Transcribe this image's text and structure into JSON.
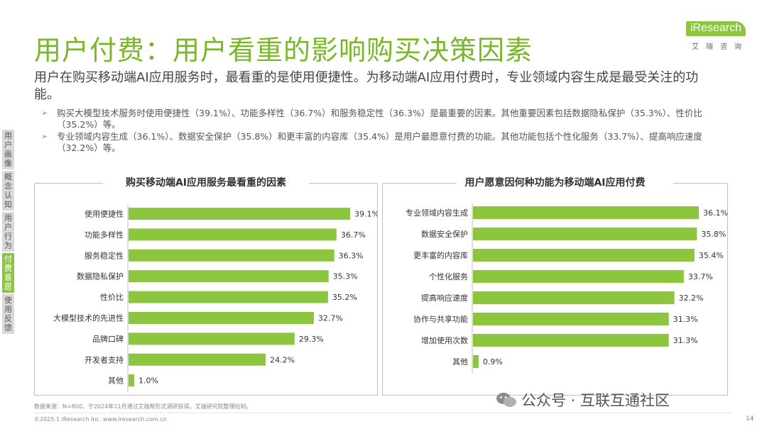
{
  "title": "用户付费：用户看重的影响购买决策因素",
  "logo": {
    "word": "iResearch",
    "sub": "艾瑞咨询"
  },
  "subtitle": "用户在购买移动端AI应用服务时，最看重的是使用便捷性。为移动端AI应用付费时，专业领域内容生成是最受关注的功能。",
  "bullets": [
    "购买大模型技术服务时使用便捷性（39.1%）、功能多样性（36.7%）和服务稳定性（36.3%）是最重要的因素。其他重要因素包括数据隐私保护（35.3%）、性价比（35.2%）等。",
    "专业领域内容生成（36.1%）、数据安全保护（35.8%）和更丰富的内容库（35.4%）是用户最愿意付费的功能。其他功能包括个性化服务（33.7%）、提高响应速度（32.2%）等。"
  ],
  "sidebar": [
    {
      "label": "用户画像",
      "active": false
    },
    {
      "label": "概念认知",
      "active": false
    },
    {
      "label": "用户行为",
      "active": false
    },
    {
      "label": "付费意愿",
      "active": true
    },
    {
      "label": "使用反馈",
      "active": false
    }
  ],
  "colors": {
    "accent": "#7ab729",
    "bar": "#8cc63f"
  },
  "chart_data": [
    {
      "type": "bar",
      "orientation": "horizontal",
      "title": "购买移动端AI应用服务最看重的因素",
      "categories": [
        "使用便捷性",
        "功能多样性",
        "服务稳定性",
        "数据隐私保护",
        "性价比",
        "大模型技术的先进性",
        "品牌口碑",
        "开发者支持",
        "其他"
      ],
      "values": [
        39.1,
        36.7,
        36.3,
        35.3,
        35.2,
        32.7,
        29.3,
        24.2,
        1.0
      ],
      "labels": [
        "39.1%",
        "36.7%",
        "36.3%",
        "35.3%",
        "35.2%",
        "32.7%",
        "29.3%",
        "24.2%",
        "1.0%"
      ],
      "xlim": [
        0,
        45
      ]
    },
    {
      "type": "bar",
      "orientation": "horizontal",
      "title": "用户愿意因何种功能为移动端AI应用付费",
      "categories": [
        "专业领域内容生成",
        "数据安全保护",
        "更丰富的内容库",
        "个性化服务",
        "提高响应速度",
        "协作与共享功能",
        "增加使用次数",
        "其他"
      ],
      "values": [
        36.1,
        35.8,
        35.4,
        33.7,
        32.2,
        31.3,
        31.3,
        0.9
      ],
      "labels": [
        "36.1%",
        "35.8%",
        "35.4%",
        "33.7%",
        "32.2%",
        "31.3%",
        "31.3%",
        "0.9%"
      ],
      "xlim": [
        0,
        41
      ]
    }
  ],
  "footnote": "数据来源：N=800，于2024年11月通过艾瑞帮形式调研获得。艾瑞研究院整理绘制。",
  "copyright": "©2025.1 iResearch Inc.                    www.iresearch.com.cn",
  "page_number": "14",
  "watermark": "公众号 · 互联互通社区"
}
